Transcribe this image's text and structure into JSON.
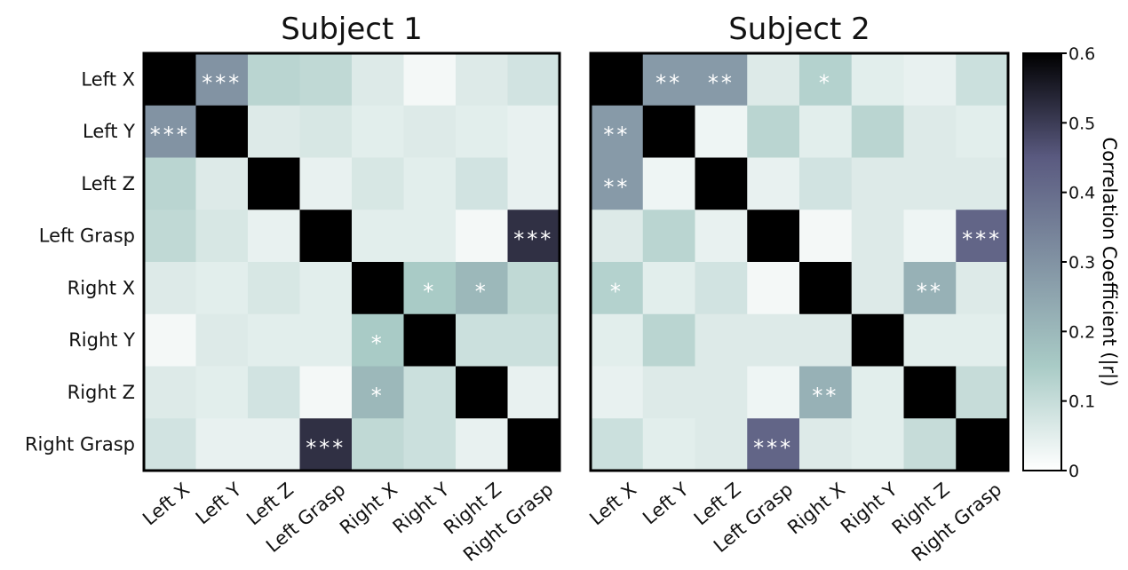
{
  "chart_data": [
    {
      "type": "heatmap",
      "title": "Subject 1",
      "row_labels": [
        "Left X",
        "Left Y",
        "Left Z",
        "Left Grasp",
        "Right X",
        "Right Y",
        "Right Z",
        "Right Grasp"
      ],
      "col_labels": [
        "Left X",
        "Left Y",
        "Left Z",
        "Left Grasp",
        "Right X",
        "Right Y",
        "Right Z",
        "Right Grasp"
      ],
      "values": [
        [
          0.6,
          0.3,
          0.12,
          0.11,
          0.06,
          0.02,
          0.06,
          0.08
        ],
        [
          0.3,
          0.6,
          0.06,
          0.07,
          0.05,
          0.06,
          0.05,
          0.04
        ],
        [
          0.12,
          0.06,
          0.6,
          0.04,
          0.07,
          0.05,
          0.08,
          0.04
        ],
        [
          0.11,
          0.07,
          0.04,
          0.6,
          0.05,
          0.05,
          0.02,
          0.52
        ],
        [
          0.06,
          0.05,
          0.07,
          0.05,
          0.6,
          0.15,
          0.2,
          0.11
        ],
        [
          0.02,
          0.06,
          0.05,
          0.05,
          0.15,
          0.6,
          0.09,
          0.09
        ],
        [
          0.06,
          0.05,
          0.08,
          0.02,
          0.2,
          0.09,
          0.6,
          0.04
        ],
        [
          0.08,
          0.04,
          0.04,
          0.52,
          0.11,
          0.09,
          0.04,
          0.6
        ]
      ],
      "annotations": [
        [
          "",
          "***",
          "",
          "",
          "",
          "",
          "",
          ""
        ],
        [
          "***",
          "",
          "",
          "",
          "",
          "",
          "",
          ""
        ],
        [
          "",
          "",
          "",
          "",
          "",
          "",
          "",
          ""
        ],
        [
          "",
          "",
          "",
          "",
          "",
          "",
          "",
          "***"
        ],
        [
          "",
          "",
          "",
          "",
          "",
          "*",
          "*",
          ""
        ],
        [
          "",
          "",
          "",
          "",
          "*",
          "",
          "",
          ""
        ],
        [
          "",
          "",
          "",
          "",
          "*",
          "",
          "",
          ""
        ],
        [
          "",
          "",
          "",
          "***",
          "",
          "",
          "",
          ""
        ]
      ]
    },
    {
      "type": "heatmap",
      "title": "Subject 2",
      "row_labels": [
        "Left X",
        "Left Y",
        "Left Z",
        "Left Grasp",
        "Right X",
        "Right Y",
        "Right Z",
        "Right Grasp"
      ],
      "col_labels": [
        "Left X",
        "Left Y",
        "Left Z",
        "Left Grasp",
        "Right X",
        "Right Y",
        "Right Z",
        "Right Grasp"
      ],
      "values": [
        [
          0.6,
          0.28,
          0.28,
          0.06,
          0.13,
          0.05,
          0.04,
          0.09
        ],
        [
          0.28,
          0.6,
          0.03,
          0.12,
          0.05,
          0.12,
          0.06,
          0.05
        ],
        [
          0.28,
          0.03,
          0.6,
          0.04,
          0.08,
          0.06,
          0.06,
          0.06
        ],
        [
          0.06,
          0.12,
          0.04,
          0.6,
          0.02,
          0.06,
          0.03,
          0.42
        ],
        [
          0.13,
          0.05,
          0.08,
          0.02,
          0.6,
          0.06,
          0.22,
          0.06
        ],
        [
          0.05,
          0.12,
          0.06,
          0.06,
          0.06,
          0.6,
          0.05,
          0.05
        ],
        [
          0.04,
          0.06,
          0.06,
          0.03,
          0.22,
          0.05,
          0.6,
          0.1
        ],
        [
          0.09,
          0.05,
          0.06,
          0.42,
          0.06,
          0.05,
          0.1,
          0.6
        ]
      ],
      "annotations": [
        [
          "",
          "**",
          "**",
          "",
          "*",
          "",
          "",
          ""
        ],
        [
          "**",
          "",
          "",
          "",
          "",
          "",
          "",
          ""
        ],
        [
          "**",
          "",
          "",
          "",
          "",
          "",
          "",
          ""
        ],
        [
          "",
          "",
          "",
          "",
          "",
          "",
          "",
          "***"
        ],
        [
          "*",
          "",
          "",
          "",
          "",
          "",
          "**",
          ""
        ],
        [
          "",
          "",
          "",
          "",
          "",
          "",
          "",
          ""
        ],
        [
          "",
          "",
          "",
          "",
          "**",
          "",
          "",
          ""
        ],
        [
          "",
          "",
          "",
          "***",
          "",
          "",
          "",
          ""
        ]
      ]
    }
  ],
  "colorbar": {
    "label": "Correlation Coefficient (|r|)",
    "range": [
      0,
      0.6
    ],
    "ticks": [
      "0",
      "0.1",
      "0.2",
      "0.3",
      "0.4",
      "0.5",
      "0.6"
    ],
    "colors": [
      "#ffffff",
      "#a9cbc6",
      "#5a5a80",
      "#000000"
    ]
  }
}
